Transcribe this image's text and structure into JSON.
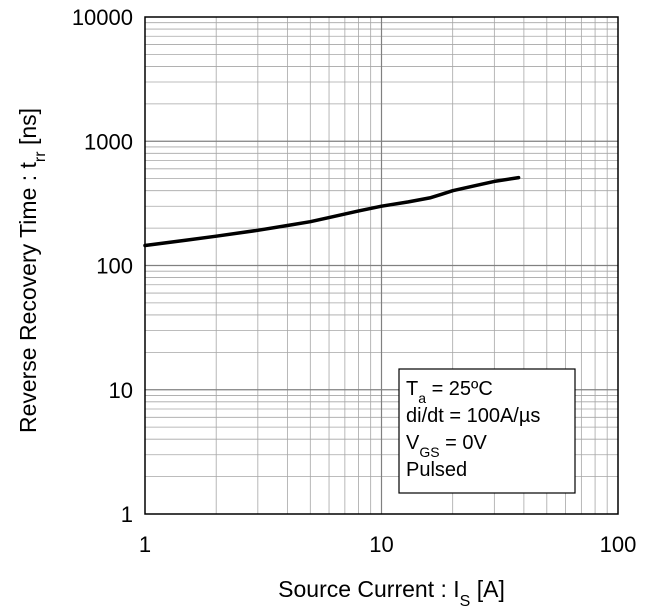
{
  "chart_data": {
    "type": "line",
    "x_scale": "log",
    "y_scale": "log",
    "xlim": [
      1,
      100
    ],
    "ylim": [
      1,
      10000
    ],
    "grid": true,
    "x_ticks": [
      "1",
      "10",
      "100"
    ],
    "y_ticks": [
      "1",
      "10",
      "100",
      "1000",
      "10000"
    ],
    "xlabel": {
      "main": "Source Current : I",
      "sub": "S",
      "tail": " [A]"
    },
    "ylabel": {
      "main": "Reverse Recovery Time : t",
      "sub": "rr",
      "tail": " [ns]"
    },
    "conditions": {
      "line1": {
        "main": "T",
        "sub": "a",
        "tail": " = 25ºC"
      },
      "line2": "di/dt = 100A/µs",
      "line3": {
        "main": "V",
        "sub": "GS",
        "tail": " = 0V"
      },
      "line4": "Pulsed"
    },
    "series": [
      {
        "x": [
          1,
          1.5,
          2,
          3,
          4,
          5,
          6,
          8,
          10,
          13,
          16,
          18,
          20,
          25,
          30,
          38
        ],
        "y": [
          145,
          160,
          172,
          192,
          210,
          225,
          243,
          275,
          300,
          325,
          350,
          375,
          400,
          440,
          475,
          510
        ]
      }
    ]
  }
}
